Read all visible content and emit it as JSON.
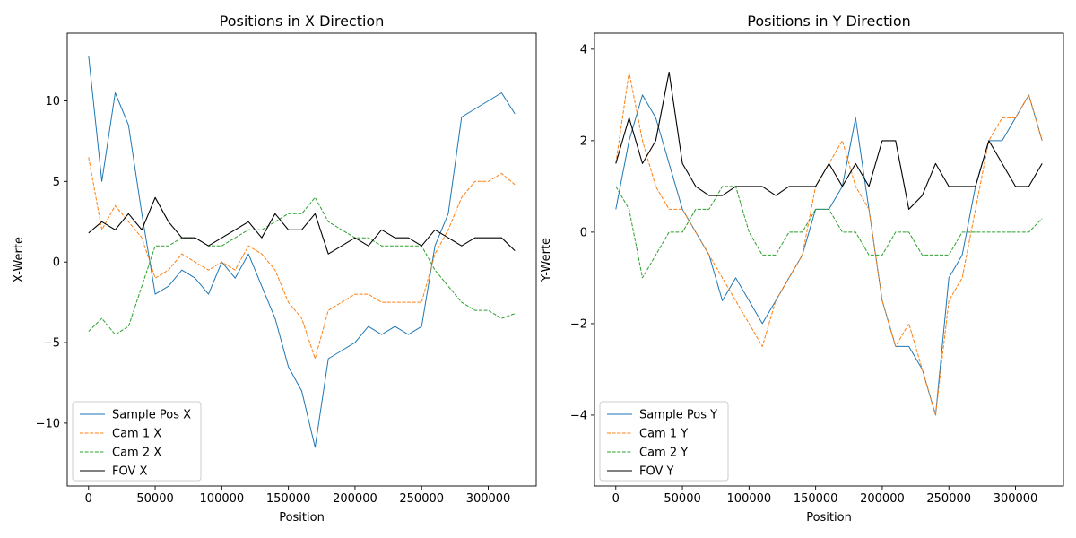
{
  "chart_data": [
    {
      "type": "line",
      "title": "Positions in X Direction",
      "xlabel": "Position",
      "ylabel": "X-Werte",
      "xlim": [
        -16000,
        336000
      ],
      "ylim": [
        -13.9,
        14.2
      ],
      "xticks": [
        0,
        50000,
        100000,
        150000,
        200000,
        250000,
        300000
      ],
      "xtick_labels": [
        "0",
        "50000",
        "100000",
        "150000",
        "200000",
        "250000",
        "300000"
      ],
      "yticks": [
        -10,
        -5,
        0,
        5,
        10
      ],
      "ytick_labels": [
        "−10",
        "−5",
        "0",
        "5",
        "10"
      ],
      "legend": "lower-left",
      "grid": false,
      "series": [
        {
          "name": "Sample Pos X",
          "color": "#1f77b4",
          "style": "solid",
          "x": [
            0,
            10000,
            20000,
            30000,
            40000,
            50000,
            60000,
            70000,
            80000,
            90000,
            100000,
            110000,
            120000,
            130000,
            140000,
            150000,
            160000,
            170000,
            180000,
            190000,
            200000,
            210000,
            220000,
            230000,
            240000,
            250000,
            260000,
            270000,
            280000,
            290000,
            300000,
            310000,
            320000
          ],
          "y": [
            12.8,
            5.0,
            10.5,
            8.5,
            3.0,
            -2.0,
            -1.5,
            -0.5,
            -1.0,
            -2.0,
            0.0,
            -1.0,
            0.5,
            -1.5,
            -3.5,
            -6.5,
            -8.0,
            -11.5,
            -6.0,
            -5.5,
            -5.0,
            -4.0,
            -4.5,
            -4.0,
            -4.5,
            -4.0,
            1.0,
            3.0,
            9.0,
            9.5,
            10.0,
            10.5,
            9.2
          ]
        },
        {
          "name": "Cam 1 X",
          "color": "#ff7f0e",
          "style": "dashed",
          "x": [
            0,
            10000,
            20000,
            30000,
            40000,
            50000,
            60000,
            70000,
            80000,
            90000,
            100000,
            110000,
            120000,
            130000,
            140000,
            150000,
            160000,
            170000,
            180000,
            190000,
            200000,
            210000,
            220000,
            230000,
            240000,
            250000,
            260000,
            270000,
            280000,
            290000,
            300000,
            310000,
            320000
          ],
          "y": [
            6.5,
            2.0,
            3.5,
            2.5,
            1.5,
            -1.0,
            -0.5,
            0.5,
            0.0,
            -0.5,
            0.0,
            -0.5,
            1.0,
            0.5,
            -0.5,
            -2.5,
            -3.5,
            -6.0,
            -3.0,
            -2.5,
            -2.0,
            -2.0,
            -2.5,
            -2.5,
            -2.5,
            -2.5,
            0.5,
            2.0,
            4.0,
            5.0,
            5.0,
            5.5,
            4.8
          ]
        },
        {
          "name": "Cam 2 X",
          "color": "#2ca02c",
          "style": "dashed",
          "x": [
            0,
            10000,
            20000,
            30000,
            40000,
            50000,
            60000,
            70000,
            80000,
            90000,
            100000,
            110000,
            120000,
            130000,
            140000,
            150000,
            160000,
            170000,
            180000,
            190000,
            200000,
            210000,
            220000,
            230000,
            240000,
            250000,
            260000,
            270000,
            280000,
            290000,
            300000,
            310000,
            320000
          ],
          "y": [
            -4.3,
            -3.5,
            -4.5,
            -4.0,
            -1.5,
            1.0,
            1.0,
            1.5,
            1.5,
            1.0,
            1.0,
            1.5,
            2.0,
            2.0,
            2.5,
            3.0,
            3.0,
            4.0,
            2.5,
            2.0,
            1.5,
            1.5,
            1.0,
            1.0,
            1.0,
            1.0,
            -0.5,
            -1.5,
            -2.5,
            -3.0,
            -3.0,
            -3.5,
            -3.2
          ]
        },
        {
          "name": "FOV X",
          "color": "#000000",
          "style": "solid",
          "x": [
            0,
            10000,
            20000,
            30000,
            40000,
            50000,
            60000,
            70000,
            80000,
            90000,
            100000,
            110000,
            120000,
            130000,
            140000,
            150000,
            160000,
            170000,
            180000,
            190000,
            200000,
            210000,
            220000,
            230000,
            240000,
            250000,
            260000,
            270000,
            280000,
            290000,
            300000,
            310000,
            320000
          ],
          "y": [
            1.8,
            2.5,
            2.0,
            3.0,
            2.0,
            4.0,
            2.5,
            1.5,
            1.5,
            1.0,
            1.5,
            2.0,
            2.5,
            1.5,
            3.0,
            2.0,
            2.0,
            3.0,
            0.5,
            1.0,
            1.5,
            1.0,
            2.0,
            1.5,
            1.5,
            1.0,
            2.0,
            1.5,
            1.0,
            1.5,
            1.5,
            1.5,
            0.7
          ]
        }
      ]
    },
    {
      "type": "line",
      "title": "Positions in Y Direction",
      "xlabel": "Position",
      "ylabel": "Y-Werte",
      "xlim": [
        -16000,
        336000
      ],
      "ylim": [
        -5.55,
        4.35
      ],
      "xticks": [
        0,
        50000,
        100000,
        150000,
        200000,
        250000,
        300000
      ],
      "xtick_labels": [
        "0",
        "50000",
        "100000",
        "150000",
        "200000",
        "250000",
        "300000"
      ],
      "yticks": [
        -4,
        -2,
        0,
        2,
        4
      ],
      "ytick_labels": [
        "−4",
        "−2",
        "0",
        "2",
        "4"
      ],
      "legend": "lower-left",
      "grid": false,
      "series": [
        {
          "name": "Sample Pos Y",
          "color": "#1f77b4",
          "style": "solid",
          "x": [
            0,
            10000,
            20000,
            30000,
            40000,
            50000,
            60000,
            70000,
            80000,
            90000,
            100000,
            110000,
            120000,
            130000,
            140000,
            150000,
            160000,
            170000,
            180000,
            190000,
            200000,
            210000,
            220000,
            230000,
            240000,
            250000,
            260000,
            270000,
            280000,
            290000,
            300000,
            310000,
            320000
          ],
          "y": [
            0.5,
            2.0,
            3.0,
            2.5,
            1.5,
            0.5,
            0.0,
            -0.5,
            -1.5,
            -1.0,
            -1.5,
            -2.0,
            -1.5,
            -1.0,
            -0.5,
            0.5,
            0.5,
            1.0,
            2.5,
            0.5,
            -1.5,
            -2.5,
            -2.5,
            -3.0,
            -4.0,
            -1.0,
            -0.5,
            1.0,
            2.0,
            2.0,
            2.5,
            3.0,
            2.0
          ]
        },
        {
          "name": "Cam 1 Y",
          "color": "#ff7f0e",
          "style": "dashed",
          "x": [
            0,
            10000,
            20000,
            30000,
            40000,
            50000,
            60000,
            70000,
            80000,
            90000,
            100000,
            110000,
            120000,
            130000,
            140000,
            150000,
            160000,
            170000,
            180000,
            190000,
            200000,
            210000,
            220000,
            230000,
            240000,
            250000,
            260000,
            270000,
            280000,
            290000,
            300000,
            310000,
            320000
          ],
          "y": [
            1.5,
            3.5,
            2.0,
            1.0,
            0.5,
            0.5,
            0.0,
            -0.5,
            -1.0,
            -1.5,
            -2.0,
            -2.5,
            -1.5,
            -1.0,
            -0.5,
            1.0,
            1.5,
            2.0,
            1.0,
            0.5,
            -1.5,
            -2.5,
            -2.0,
            -3.0,
            -4.0,
            -1.5,
            -1.0,
            0.5,
            2.0,
            2.5,
            2.5,
            3.0,
            2.0
          ]
        },
        {
          "name": "Cam 2 Y",
          "color": "#2ca02c",
          "style": "dashed",
          "x": [
            0,
            10000,
            20000,
            30000,
            40000,
            50000,
            60000,
            70000,
            80000,
            90000,
            100000,
            110000,
            120000,
            130000,
            140000,
            150000,
            160000,
            170000,
            180000,
            190000,
            200000,
            210000,
            220000,
            230000,
            240000,
            250000,
            260000,
            270000,
            280000,
            290000,
            300000,
            310000,
            320000
          ],
          "y": [
            1.0,
            0.5,
            -1.0,
            -0.5,
            0.0,
            0.0,
            0.5,
            0.5,
            1.0,
            1.0,
            0.0,
            -0.5,
            -0.5,
            0.0,
            0.0,
            0.5,
            0.5,
            0.0,
            0.0,
            -0.5,
            -0.5,
            0.0,
            0.0,
            -0.5,
            -0.5,
            -0.5,
            0.0,
            0.0,
            0.0,
            0.0,
            0.0,
            0.0,
            0.3
          ]
        },
        {
          "name": "FOV Y",
          "color": "#000000",
          "style": "solid",
          "x": [
            0,
            10000,
            20000,
            30000,
            40000,
            50000,
            60000,
            70000,
            80000,
            90000,
            100000,
            110000,
            120000,
            130000,
            140000,
            150000,
            160000,
            170000,
            180000,
            190000,
            200000,
            210000,
            220000,
            230000,
            240000,
            250000,
            260000,
            270000,
            280000,
            290000,
            300000,
            310000,
            320000
          ],
          "y": [
            1.5,
            2.5,
            1.5,
            2.0,
            3.5,
            1.5,
            1.0,
            0.8,
            0.8,
            1.0,
            1.0,
            1.0,
            0.8,
            1.0,
            1.0,
            1.0,
            1.5,
            1.0,
            1.5,
            1.0,
            2.0,
            2.0,
            0.5,
            0.8,
            1.5,
            1.0,
            1.0,
            1.0,
            2.0,
            1.5,
            1.0,
            1.0,
            1.5
          ]
        }
      ]
    }
  ]
}
